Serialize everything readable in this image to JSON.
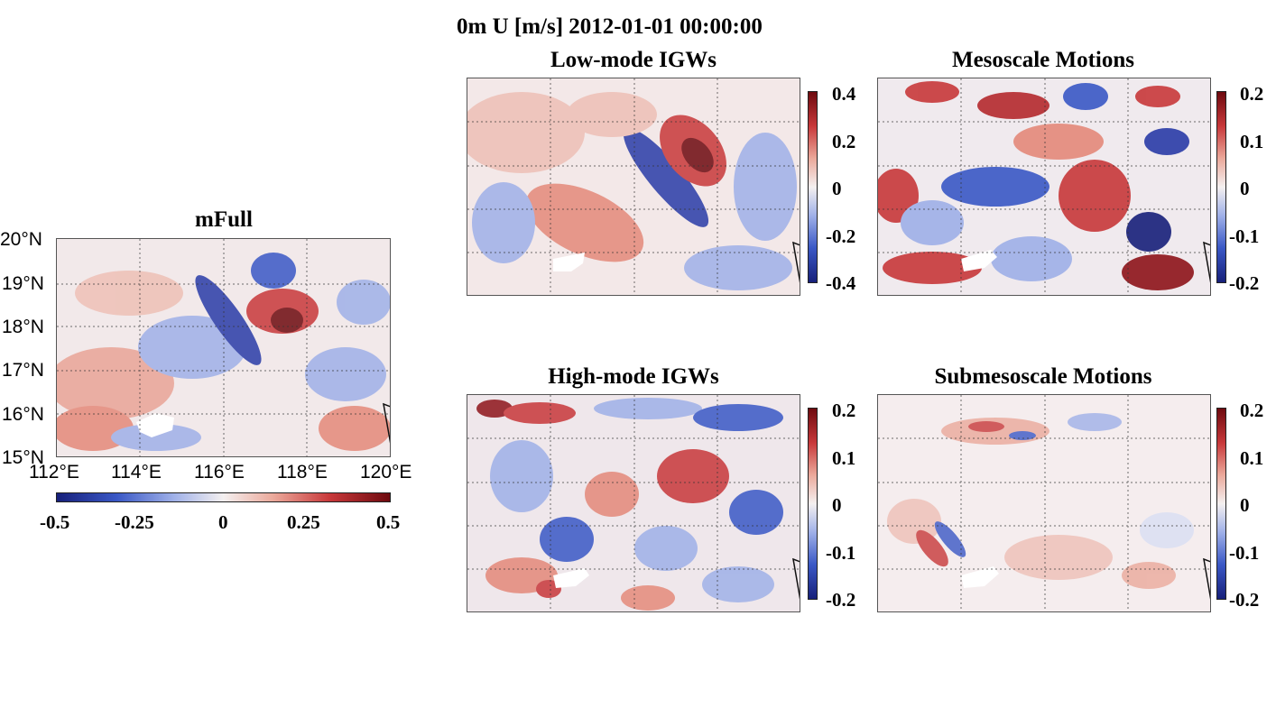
{
  "suptitle": "0m U [m/s] 2012-01-01 00:00:00",
  "chart_data": [
    {
      "type": "heatmap",
      "title": "mFull",
      "variable": "U (m/s)",
      "lon_ticks": [
        "112°E",
        "114°E",
        "116°E",
        "118°E",
        "120°E"
      ],
      "lat_ticks": [
        "20°N",
        "19°N",
        "18°N",
        "17°N",
        "16°N",
        "15°N"
      ],
      "xlim": [
        112,
        120
      ],
      "ylim": [
        15,
        20
      ],
      "clim": [
        -0.5,
        0.5
      ],
      "colorbar_ticks": [
        "-0.5",
        "-0.25",
        "0",
        "0.25",
        "0.5"
      ],
      "colorbar_orientation": "horizontal",
      "grid": true
    },
    {
      "type": "heatmap",
      "title": "Low-mode IGWs",
      "clim": [
        -0.4,
        0.4
      ],
      "colorbar_ticks": [
        "0.4",
        "0.2",
        "0",
        "-0.2",
        "-0.4"
      ],
      "colorbar_orientation": "vertical",
      "grid": true
    },
    {
      "type": "heatmap",
      "title": "Mesoscale Motions",
      "clim": [
        -0.2,
        0.2
      ],
      "colorbar_ticks": [
        "0.2",
        "0.1",
        "0",
        "-0.1",
        "-0.2"
      ],
      "colorbar_orientation": "vertical",
      "grid": true
    },
    {
      "type": "heatmap",
      "title": "High-mode IGWs",
      "clim": [
        -0.2,
        0.2
      ],
      "colorbar_ticks": [
        "0.2",
        "0.1",
        "0",
        "-0.1",
        "-0.2"
      ],
      "colorbar_orientation": "vertical",
      "grid": true
    },
    {
      "type": "heatmap",
      "title": "Submesoscale Motions",
      "clim": [
        -0.2,
        0.2
      ],
      "colorbar_ticks": [
        "0.2",
        "0.1",
        "0",
        "-0.1",
        "-0.2"
      ],
      "colorbar_orientation": "vertical",
      "grid": true
    }
  ]
}
